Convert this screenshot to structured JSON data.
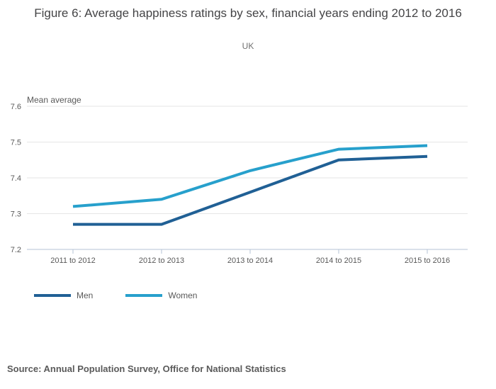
{
  "header": {
    "title": "Figure 6: Average happiness ratings by sex, financial years ending 2012 to 2016",
    "subtitle": "UK"
  },
  "chart_data": {
    "type": "line",
    "title": "Figure 6: Average happiness ratings by sex, financial years ending 2012 to 2016",
    "subtitle": "UK",
    "ylabel": "Mean average",
    "xlabel": "",
    "categories": [
      "2011 to 2012",
      "2012 to 2013",
      "2013 to 2014",
      "2014 to 2015",
      "2015 to 2016"
    ],
    "series": [
      {
        "name": "Men",
        "color": "#206095",
        "values": [
          7.27,
          7.27,
          7.36,
          7.45,
          7.46
        ]
      },
      {
        "name": "Women",
        "color": "#27a0cc",
        "values": [
          7.32,
          7.34,
          7.42,
          7.48,
          7.49
        ]
      }
    ],
    "ylim": [
      7.2,
      7.6
    ],
    "y_ticks": [
      7.2,
      7.3,
      7.4,
      7.5,
      7.6
    ],
    "y_tick_labels": [
      "7.2",
      "7.3",
      "7.4",
      "7.5",
      "7.6"
    ],
    "grid": true,
    "legend_position": "bottom-left"
  },
  "footer": {
    "source": "Source: Annual Population Survey, Office for National Statistics"
  },
  "colors": {
    "grid": "#e6e6e6",
    "axis": "#b5c3d6",
    "tick_text": "#595959",
    "title_text": "#444446"
  }
}
